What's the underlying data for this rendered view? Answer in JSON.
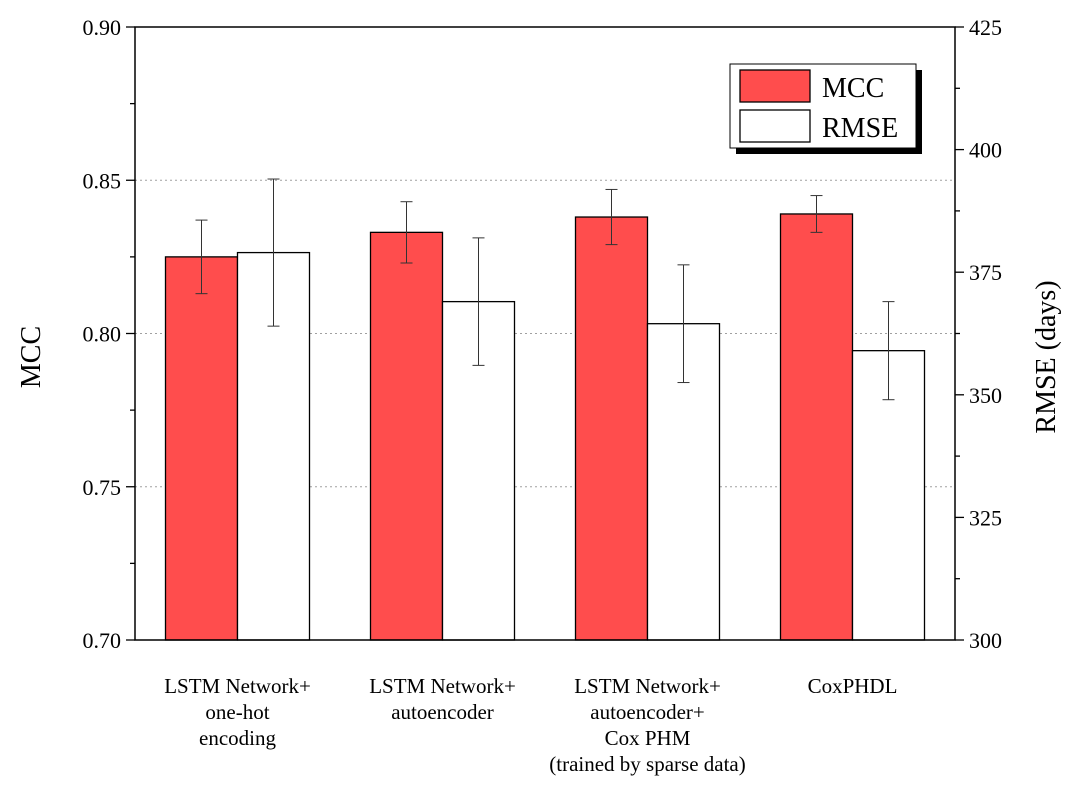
{
  "chart_data": {
    "type": "bar",
    "categories": [
      [
        "LSTM Network+",
        "one-hot",
        "encoding"
      ],
      [
        "LSTM Network+",
        "autoencoder"
      ],
      [
        "LSTM Network+",
        "autoencoder+",
        "Cox PHM",
        "(trained by sparse data)"
      ],
      [
        "CoxPHDL"
      ]
    ],
    "series": [
      {
        "name": "MCC",
        "axis": "left",
        "color": "#ff4d4d",
        "values": [
          0.825,
          0.833,
          0.838,
          0.839
        ],
        "errors": [
          0.012,
          0.01,
          0.009,
          0.006
        ]
      },
      {
        "name": "RMSE",
        "axis": "right",
        "color": "#ffffff",
        "values": [
          379,
          369,
          364.5,
          359
        ],
        "errors": [
          15,
          13,
          12,
          10
        ]
      }
    ],
    "ylabel": "MCC",
    "y2label": "RMSE (days)",
    "ylim": [
      0.7,
      0.9
    ],
    "y2lim": [
      300,
      425
    ],
    "yticks": [
      "0.70",
      "0.75",
      "0.80",
      "0.85",
      "0.90"
    ],
    "y2ticks": [
      "300",
      "325",
      "350",
      "375",
      "400",
      "425"
    ],
    "grid": "horizontal dotted",
    "legend_position": "top-right"
  }
}
